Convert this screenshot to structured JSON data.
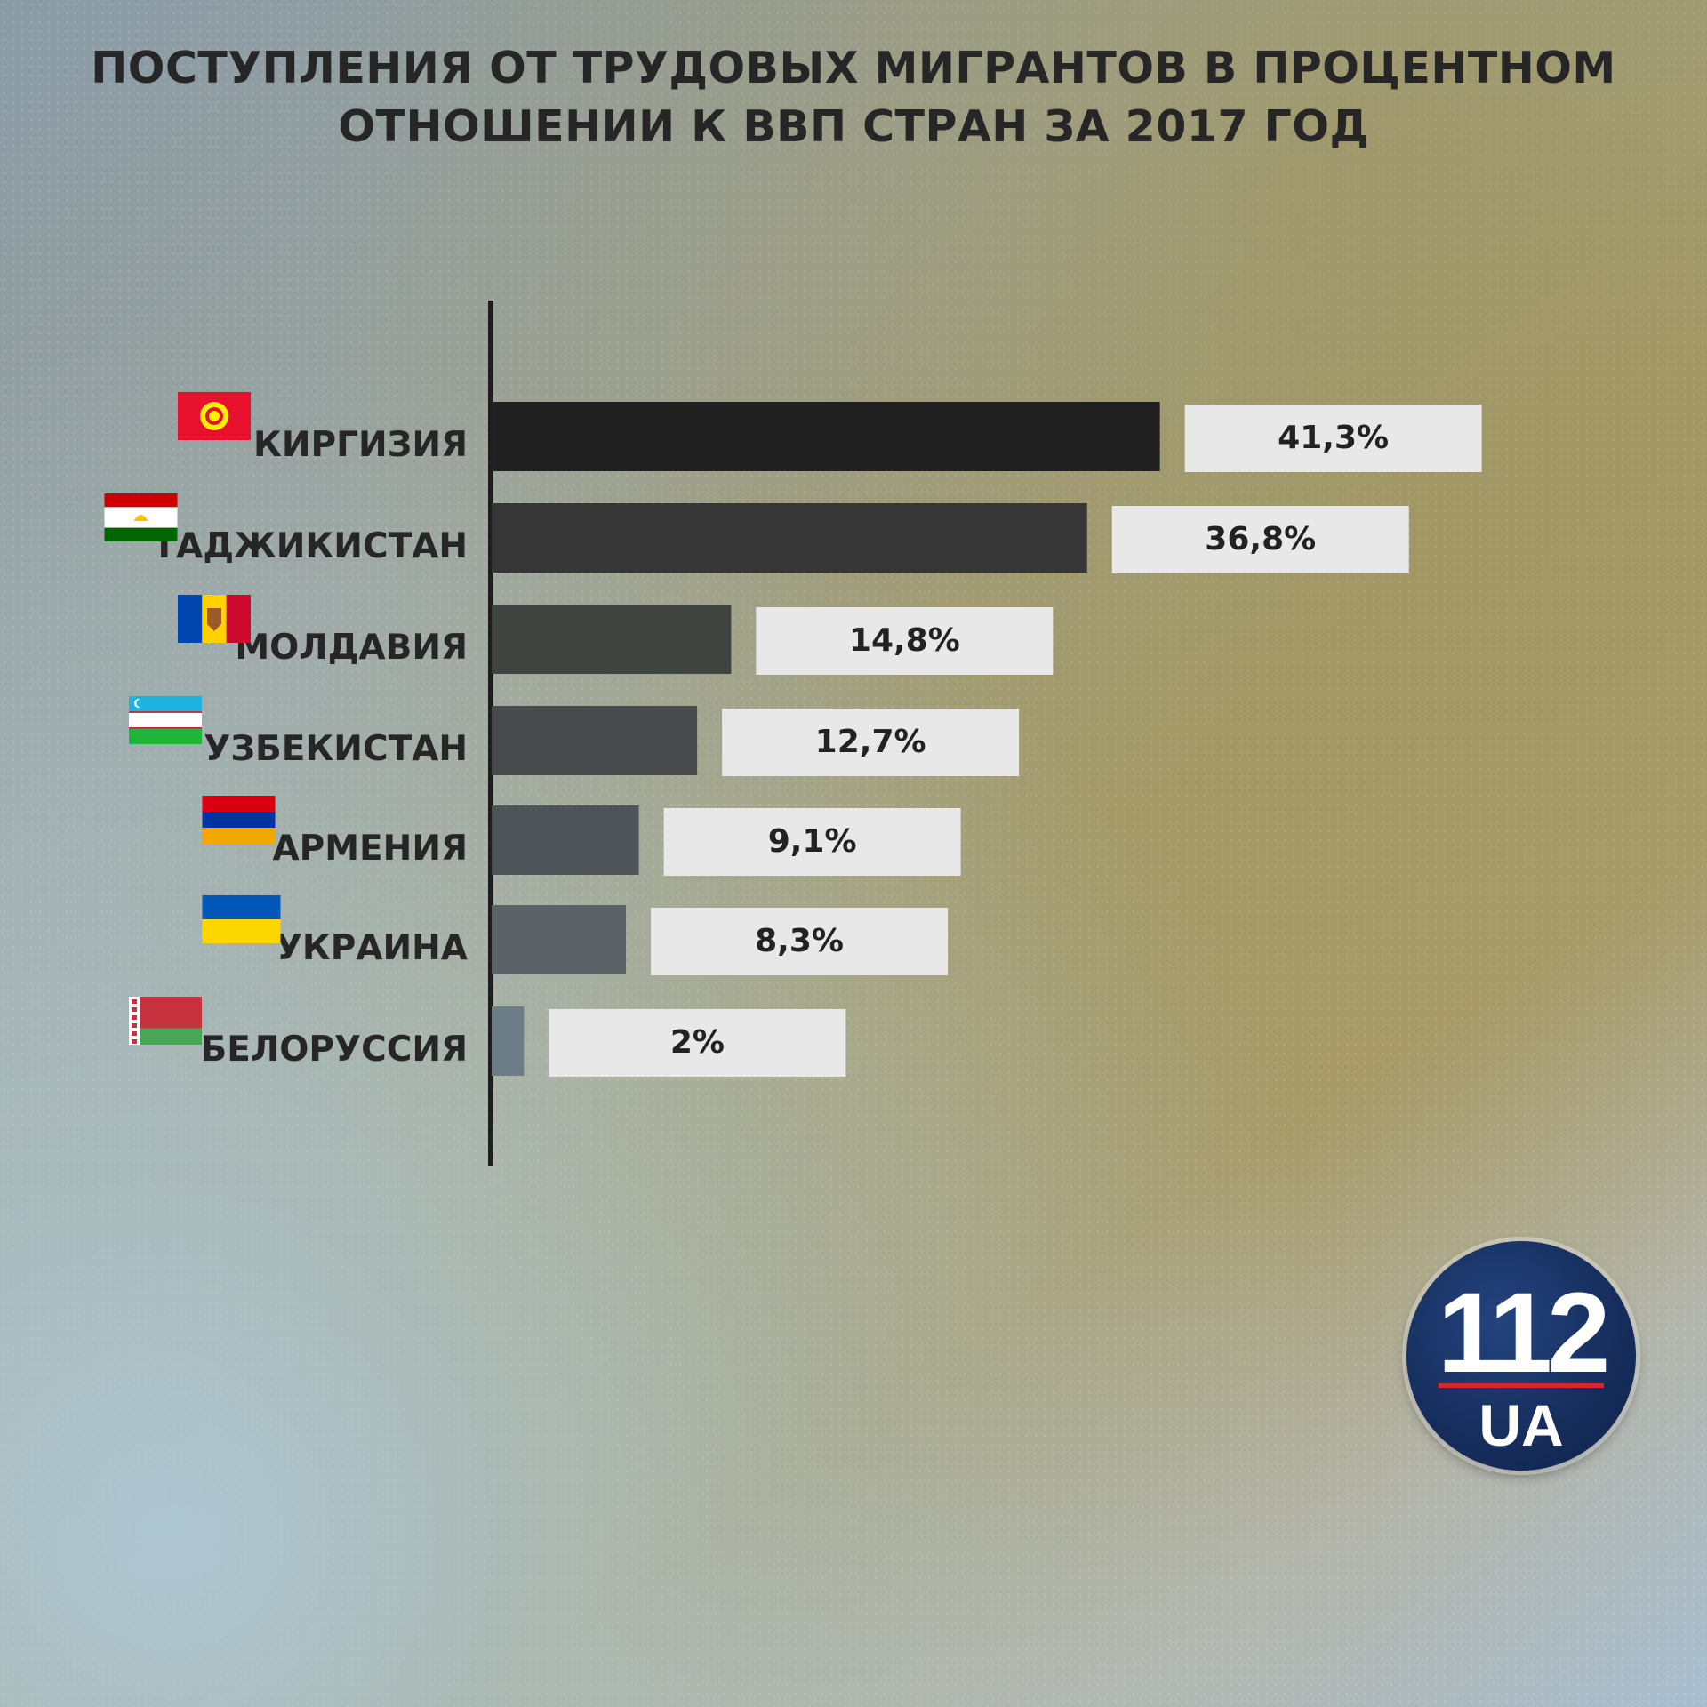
{
  "title_lines": [
    "ПОСТУПЛЕНИЯ ОТ ТРУДОВЫХ МИГРАНТОВ В ПРОЦЕНТНОМ",
    "ОТНОШЕНИИ К ВВП СТРАН ЗА 2017 ГОД"
  ],
  "chart_data": {
    "type": "bar",
    "orientation": "horizontal",
    "title": "ПОСТУПЛЕНИЯ ОТ ТРУДОВЫХ МИГРАНТОВ В ПРОЦЕНТНОМ ОТНОШЕНИИ К ВВП СТРАН ЗА 2017 ГОД",
    "categories": [
      "КИРГИЗИЯ",
      "ТАДЖИКИСТАН",
      "МОЛДАВИЯ",
      "УЗБЕКИСТАН",
      "АРМЕНИЯ",
      "УКРАИНА",
      "БЕЛОРУССИЯ"
    ],
    "values": [
      41.3,
      36.8,
      14.8,
      12.7,
      9.1,
      8.3,
      2
    ],
    "value_labels": [
      "41,3%",
      "36,8%",
      "14,8%",
      "12,7%",
      "9,1%",
      "8,3%",
      "2%"
    ],
    "flags": [
      "kyrgyzstan-flag-icon",
      "tajikistan-flag-icon",
      "moldova-flag-icon",
      "uzbekistan-flag-icon",
      "armenia-flag-icon",
      "ukraine-flag-icon",
      "belarus-flag-icon"
    ],
    "bar_colors": [
      "#202020",
      "#363636",
      "#404440",
      "#474b4c",
      "#4e5457",
      "#5b6369",
      "#6d7d85"
    ],
    "label_box_color": "#e8e8e8",
    "xlabel": "",
    "ylabel": "",
    "grid": false,
    "legend": "none"
  },
  "logo": {
    "number": "112",
    "text": "UA",
    "background": "#162d5c",
    "stripe": "#d9262c"
  }
}
